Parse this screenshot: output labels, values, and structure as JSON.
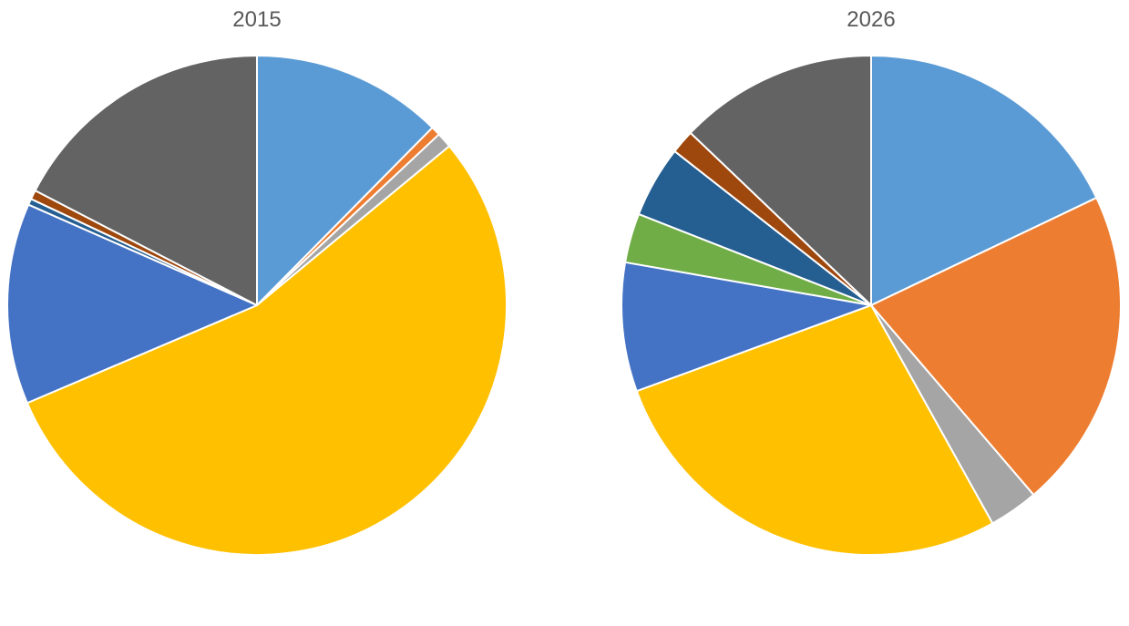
{
  "chart_data": [
    {
      "type": "pie",
      "title": "2015",
      "start_angle_deg": 0,
      "direction": "clockwise",
      "slices": [
        {
          "value": 12.4,
          "color": "#5B9BD5"
        },
        {
          "value": 0.6,
          "color": "#ED7D31"
        },
        {
          "value": 1.0,
          "color": "#A5A5A5"
        },
        {
          "value": 54.6,
          "color": "#FFC000"
        },
        {
          "value": 13.0,
          "color": "#4472C4"
        },
        {
          "value": 0.4,
          "color": "#255E91"
        },
        {
          "value": 0.6,
          "color": "#9E480E"
        },
        {
          "value": 17.4,
          "color": "#636363"
        }
      ]
    },
    {
      "type": "pie",
      "title": "2026",
      "start_angle_deg": 0,
      "direction": "clockwise",
      "slices": [
        {
          "value": 17.4,
          "color": "#5B9BD5"
        },
        {
          "value": 20.2,
          "color": "#ED7D31"
        },
        {
          "value": 3.1,
          "color": "#A5A5A5"
        },
        {
          "value": 26.7,
          "color": "#FFC000"
        },
        {
          "value": 8.1,
          "color": "#4472C4"
        },
        {
          "value": 3.1,
          "color": "#70AD47"
        },
        {
          "value": 4.5,
          "color": "#255E91"
        },
        {
          "value": 1.5,
          "color": "#9E480E"
        },
        {
          "value": 12.5,
          "color": "#636363"
        }
      ]
    }
  ]
}
